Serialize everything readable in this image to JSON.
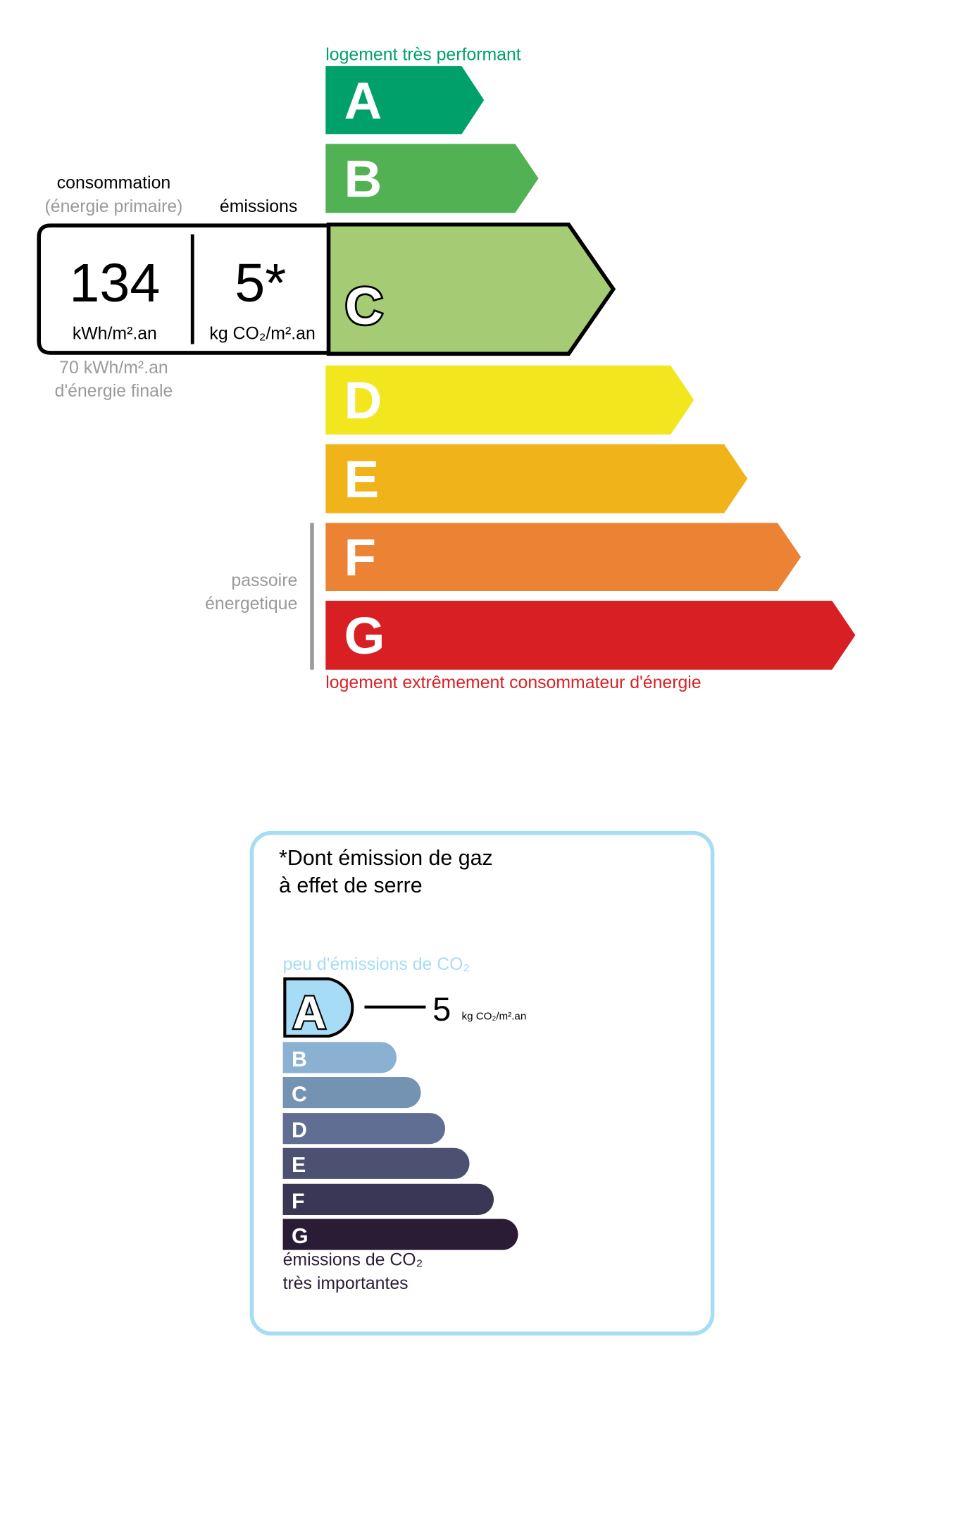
{
  "dpe": {
    "top_label": "logement très performant",
    "bottom_label": "logement extrêmement consommateur d'énergie",
    "classes": [
      {
        "letter": "A",
        "color": "#00a06b"
      },
      {
        "letter": "B",
        "color": "#52b153"
      },
      {
        "letter": "C",
        "color": "#a5cc74"
      },
      {
        "letter": "D",
        "color": "#f2e61e"
      },
      {
        "letter": "E",
        "color": "#f0b41a"
      },
      {
        "letter": "F",
        "color": "#eb8234"
      },
      {
        "letter": "G",
        "color": "#d81f24"
      }
    ],
    "current_class": "C",
    "consumption_label": "consommation",
    "consumption_sublabel": "(énergie primaire)",
    "emissions_label": "émissions",
    "consumption_value": "134",
    "consumption_unit": "kWh/m².an",
    "emissions_value": "5*",
    "emissions_unit": "kg CO₂/m².an",
    "final_energy_value": "70 kWh/m².an",
    "final_energy_label": "d'énergie finale",
    "passoire_line1": "passoire",
    "passoire_line2": "énergetique",
    "top_color": "#00a06b",
    "bottom_color": "#d81f24"
  },
  "ges": {
    "title_line1": "*Dont émission de gaz",
    "title_line2": "à effet de serre",
    "top_label": "peu d'émissions de CO₂",
    "bottom_line1": "émissions de CO₂",
    "bottom_line2": "très importantes",
    "current_class": "A",
    "value": "5",
    "unit": "kg CO₂/m².an",
    "border_color": "#a6dcf5",
    "classes": [
      {
        "letter": "A",
        "color": "#a6dcf5"
      },
      {
        "letter": "B",
        "color": "#8ab1d1"
      },
      {
        "letter": "C",
        "color": "#7493b3"
      },
      {
        "letter": "D",
        "color": "#5f6e92"
      },
      {
        "letter": "E",
        "color": "#4c5172"
      },
      {
        "letter": "F",
        "color": "#3a3756"
      },
      {
        "letter": "G",
        "color": "#2a1c35"
      }
    ]
  }
}
